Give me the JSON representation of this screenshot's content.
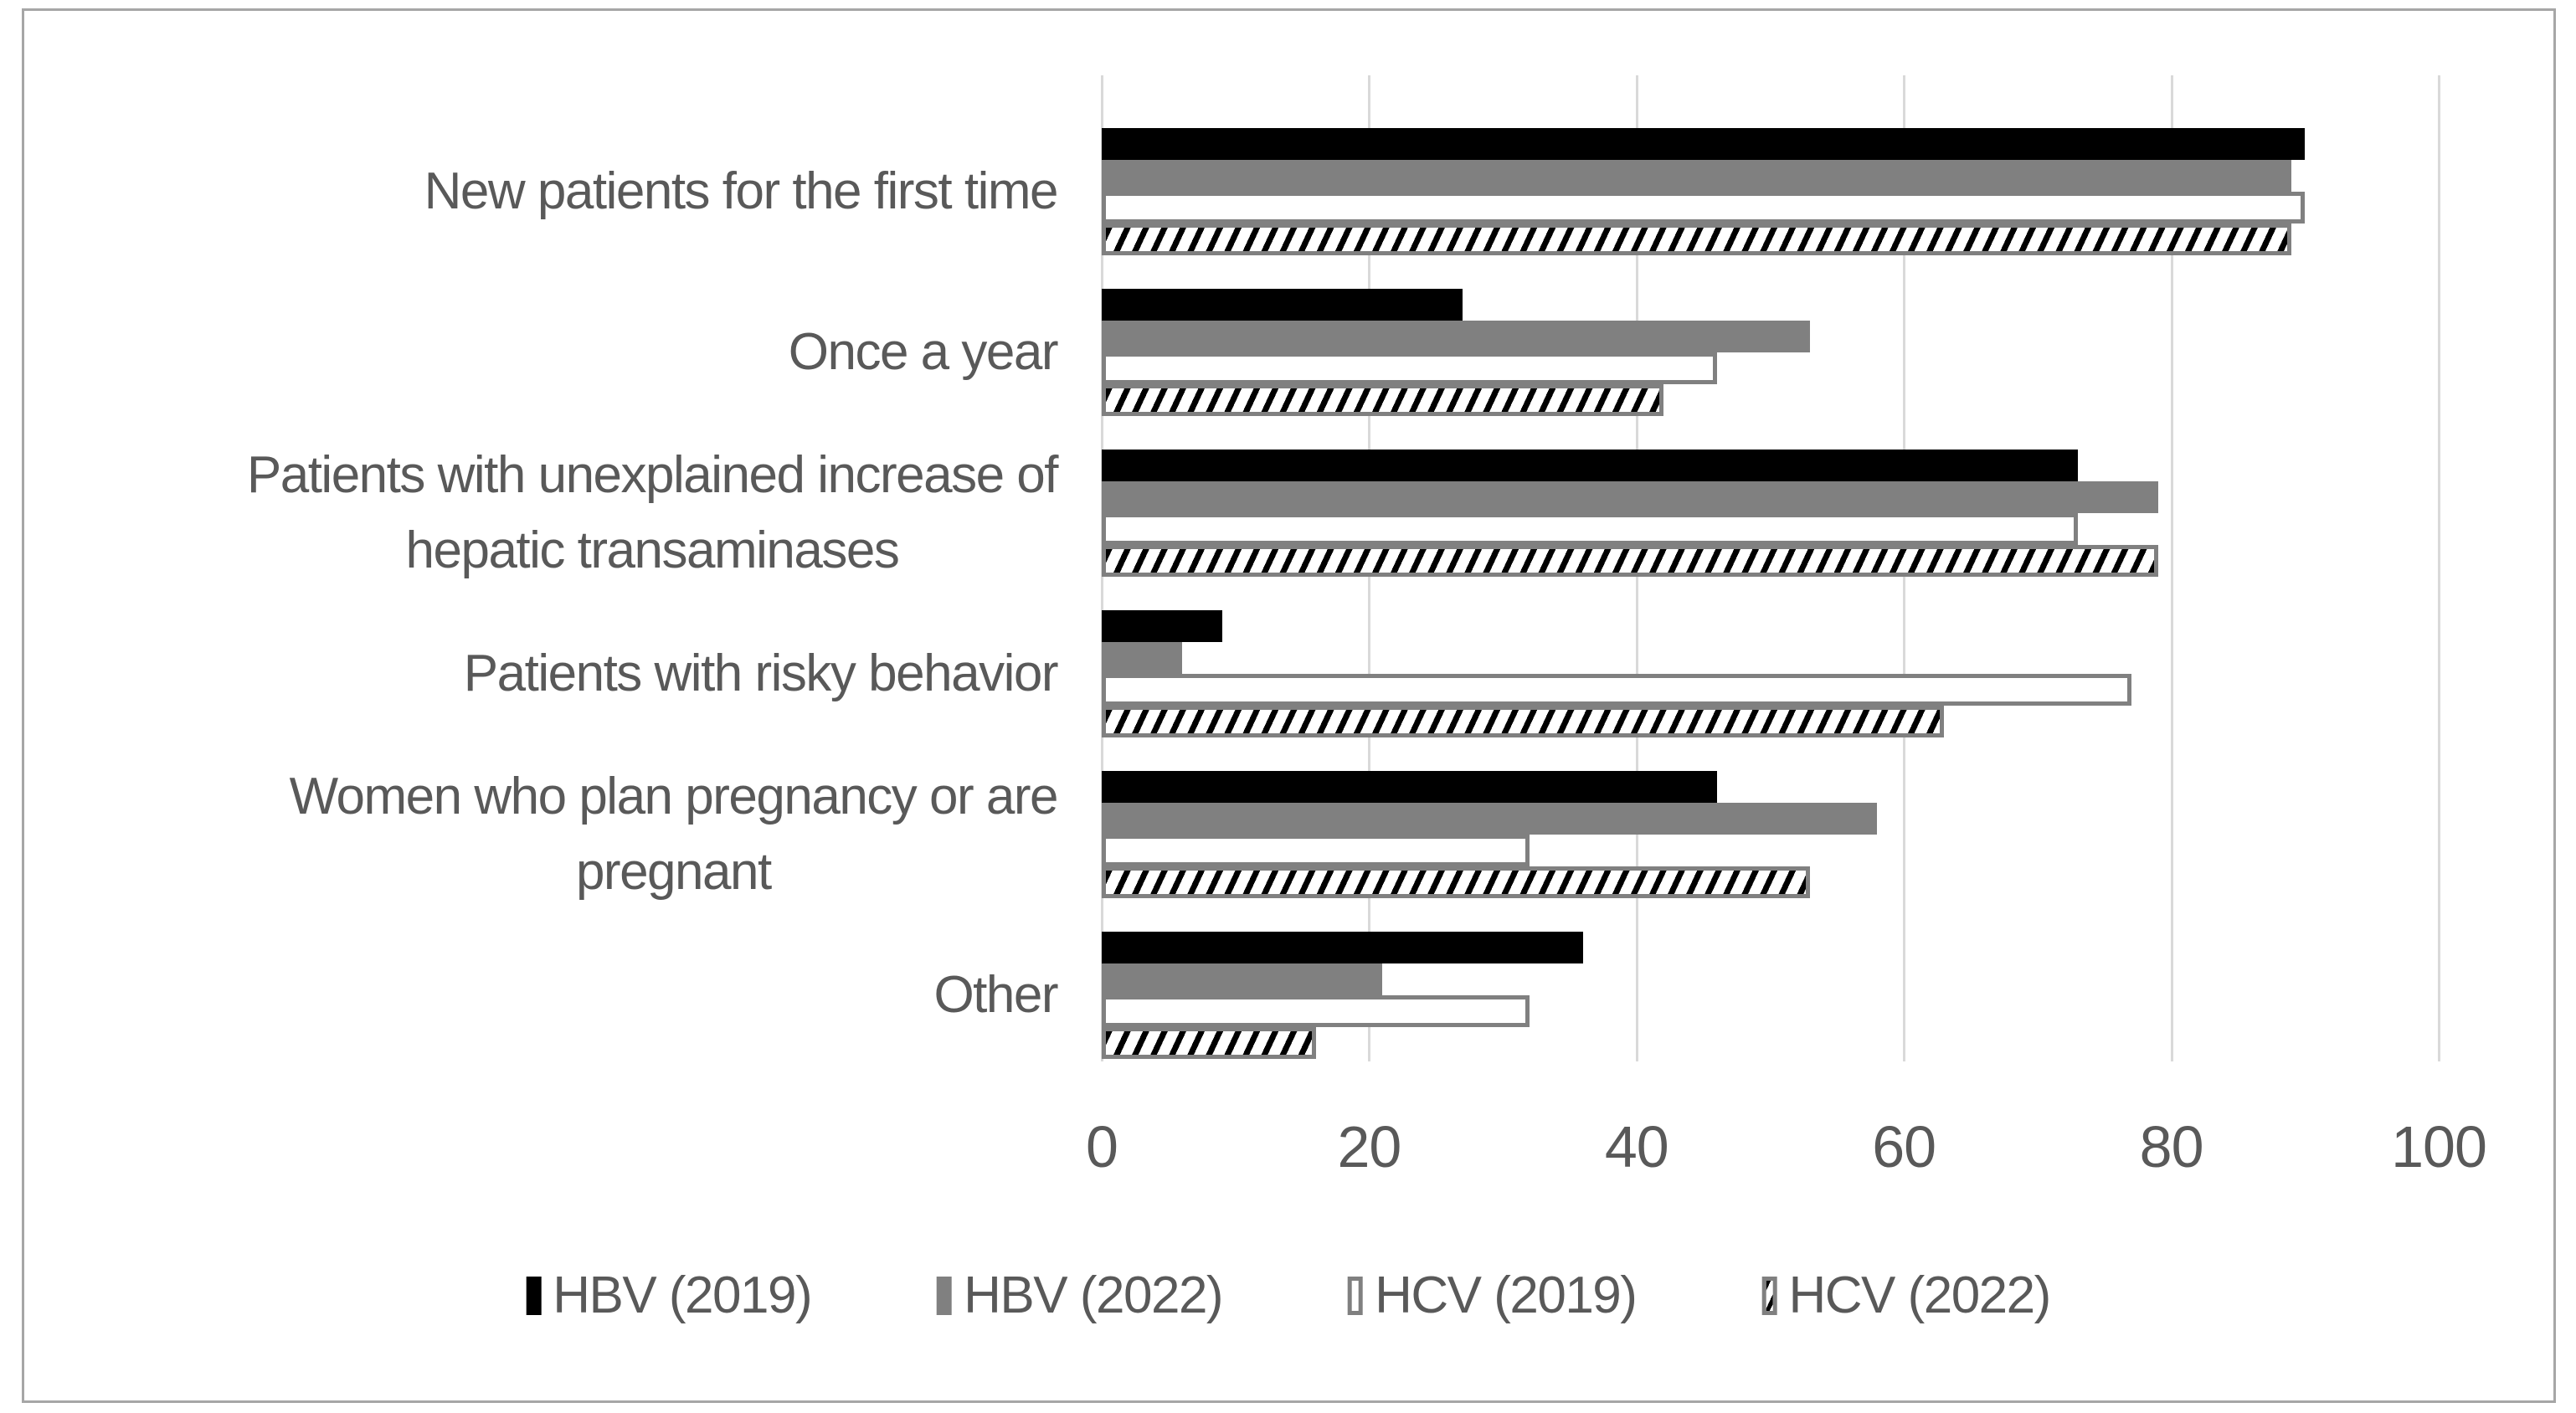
{
  "figure": {
    "background": "#ffffff",
    "frame_border_color": "#a6a6a6"
  },
  "chart_data": {
    "type": "bar",
    "orientation": "horizontal",
    "title": "",
    "xlabel": "",
    "ylabel": "",
    "categories": [
      "New patients for the first time",
      "Once a year",
      "Patients with unexplained increase of\nhepatic transaminases",
      "Patients with risky behavior",
      "Women who plan pregnancy or are\npregnant",
      "Other"
    ],
    "series": [
      {
        "name": "HBV (2019)",
        "style": "solid-black",
        "color": "#000000",
        "values": [
          90,
          27,
          73,
          9,
          46,
          36
        ]
      },
      {
        "name": "HBV (2022)",
        "style": "solid-gray",
        "color": "#808080",
        "values": [
          89,
          53,
          79,
          6,
          58,
          21
        ]
      },
      {
        "name": "HCV (2019)",
        "style": "white-outline",
        "color": "#ffffff",
        "border_color": "#808080",
        "values": [
          90,
          46,
          73,
          77,
          32,
          32
        ]
      },
      {
        "name": "HCV (2022)",
        "style": "diagonal-hatch",
        "color": "#000000",
        "border_color": "#808080",
        "values": [
          89,
          42,
          79,
          63,
          53,
          16
        ]
      }
    ],
    "x_ticks": [
      0,
      20,
      40,
      60,
      80,
      100
    ],
    "x_tick_labels": [
      "0",
      "20",
      "40",
      "60",
      "80",
      "100"
    ],
    "xlim": [
      0,
      100
    ],
    "grid": "vertical",
    "gridline_color": "#d9d9d9",
    "text_color": "#595959",
    "legend_position": "bottom"
  }
}
